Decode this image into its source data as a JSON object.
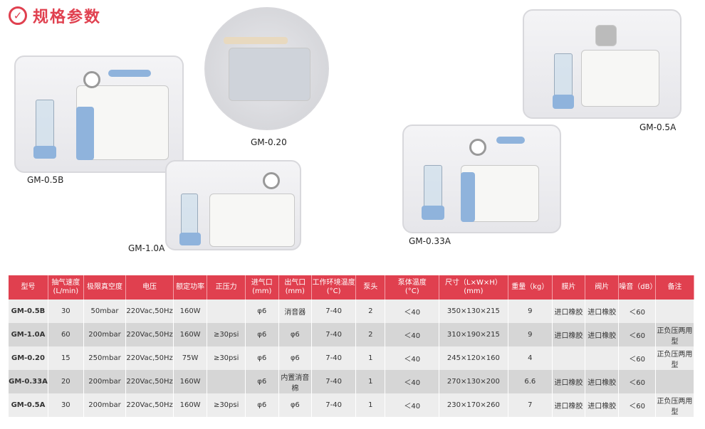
{
  "header": {
    "title": "规格参数",
    "icon": "check-circle-icon",
    "accent": "#e0404f"
  },
  "products": [
    {
      "label": "GM-0.5B"
    },
    {
      "label": "GM-0.20"
    },
    {
      "label": "GM-1.0A"
    },
    {
      "label": "GM-0.33A"
    },
    {
      "label": "GM-0.5A"
    }
  ],
  "table": {
    "headers": [
      "型号",
      "抽气速度\n(L/min)",
      "极限真空度",
      "电压",
      "额定功率",
      "正压力",
      "进气口\n(mm)",
      "出气口\n(mm)",
      "工作环境温度\n(°C)",
      "泵头",
      "泵体温度\n(°C)",
      "尺寸（L×W×H）\n(mm)",
      "重量（kg）",
      "膜片",
      "阀片",
      "噪音（dB）",
      "备注"
    ],
    "rows": [
      [
        "GM-0.5B",
        "30",
        "50mbar",
        "220Vac,50Hz",
        "160W",
        "",
        "φ6",
        "消音器",
        "7-40",
        "2",
        "＜40",
        "350×130×215",
        "9",
        "进口橡胶",
        "进口橡胶",
        "＜60",
        ""
      ],
      [
        "GM-1.0A",
        "60",
        "200mbar",
        "220Vac,50Hz",
        "160W",
        "≥30psi",
        "φ6",
        "φ6",
        "7-40",
        "2",
        "＜40",
        "310×190×215",
        "9",
        "进口橡胶",
        "进口橡胶",
        "＜60",
        "正负压两用型"
      ],
      [
        "GM-0.20",
        "15",
        "250mbar",
        "220Vac,50Hz",
        "75W",
        "≥30psi",
        "φ6",
        "φ6",
        "7-40",
        "1",
        "＜40",
        "245×120×160",
        "4",
        "",
        "",
        "＜60",
        "正负压两用型"
      ],
      [
        "GM-0.33A",
        "20",
        "200mbar",
        "220Vac,50Hz",
        "160W",
        "",
        "φ6",
        "内置消音棉",
        "7-40",
        "1",
        "＜40",
        "270×130×200",
        "6.6",
        "进口橡胶",
        "进口橡胶",
        "＜60",
        ""
      ],
      [
        "GM-0.5A",
        "30",
        "200mbar",
        "220Vac,50Hz",
        "160W",
        "≥30psi",
        "φ6",
        "φ6",
        "7-40",
        "1",
        "＜40",
        "230×170×260",
        "7",
        "进口橡胶",
        "进口橡胶",
        "＜60",
        "正负压两用型"
      ]
    ]
  }
}
